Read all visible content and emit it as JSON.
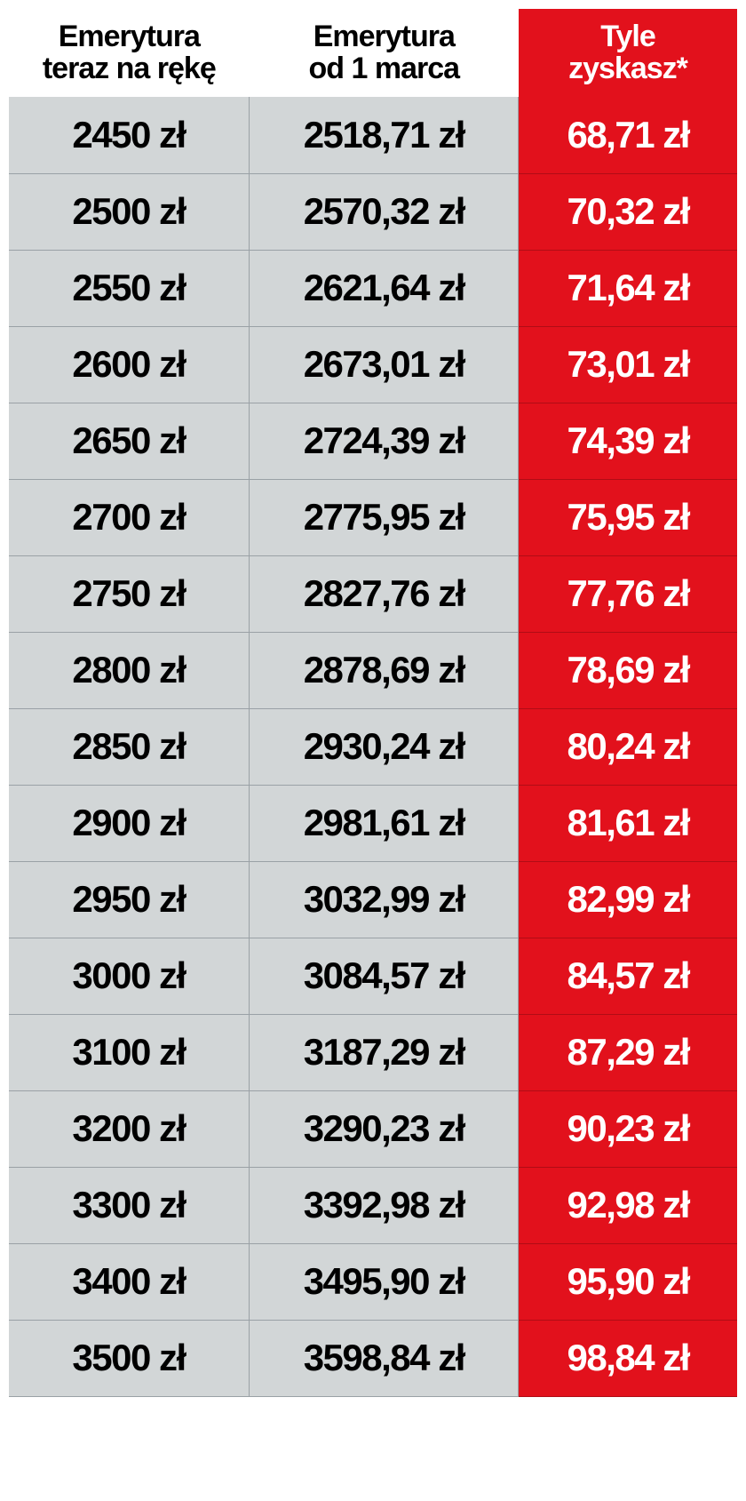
{
  "table": {
    "type": "table",
    "header_bg_left": "#ffffff",
    "header_bg_right": "#e2111c",
    "header_color_left": "#000000",
    "header_color_right": "#ffffff",
    "body_bg_left": "#d2d6d7",
    "body_bg_right": "#e2111c",
    "body_color_left": "#000000",
    "body_color_right": "#ffffff",
    "grid_color": "#9aa1a6",
    "grid_color_red": "#b10c15",
    "header_fontsize": 34,
    "cell_fontsize": 42,
    "font_weight": 900,
    "columns": [
      {
        "label_line1": "Emerytura",
        "label_line2": "teraz na rękę",
        "align": "center"
      },
      {
        "label_line1": "Emerytura",
        "label_line2": "od 1 marca",
        "align": "center"
      },
      {
        "label_line1": "Tyle",
        "label_line2": "zyskasz*",
        "align": "center"
      }
    ],
    "rows": [
      {
        "now": "2450 zł",
        "from": "2518,71 zł",
        "gain": "68,71 zł"
      },
      {
        "now": "2500 zł",
        "from": "2570,32 zł",
        "gain": "70,32 zł"
      },
      {
        "now": "2550 zł",
        "from": "2621,64 zł",
        "gain": "71,64 zł"
      },
      {
        "now": "2600 zł",
        "from": "2673,01 zł",
        "gain": "73,01 zł"
      },
      {
        "now": "2650 zł",
        "from": "2724,39 zł",
        "gain": "74,39 zł"
      },
      {
        "now": "2700 zł",
        "from": "2775,95 zł",
        "gain": "75,95 zł"
      },
      {
        "now": "2750 zł",
        "from": "2827,76 zł",
        "gain": "77,76 zł"
      },
      {
        "now": "2800 zł",
        "from": "2878,69 zł",
        "gain": "78,69 zł"
      },
      {
        "now": "2850 zł",
        "from": "2930,24 zł",
        "gain": "80,24 zł"
      },
      {
        "now": "2900 zł",
        "from": "2981,61 zł",
        "gain": "81,61 zł"
      },
      {
        "now": "2950 zł",
        "from": "3032,99 zł",
        "gain": "82,99 zł"
      },
      {
        "now": "3000 zł",
        "from": "3084,57 zł",
        "gain": "84,57 zł"
      },
      {
        "now": "3100 zł",
        "from": "3187,29 zł",
        "gain": "87,29 zł"
      },
      {
        "now": "3200 zł",
        "from": "3290,23 zł",
        "gain": "90,23 zł"
      },
      {
        "now": "3300 zł",
        "from": "3392,98 zł",
        "gain": "92,98 zł"
      },
      {
        "now": "3400 zł",
        "from": "3495,90 zł",
        "gain": "95,90 zł"
      },
      {
        "now": "3500 zł",
        "from": "3598,84 zł",
        "gain": "98,84 zł"
      }
    ]
  }
}
